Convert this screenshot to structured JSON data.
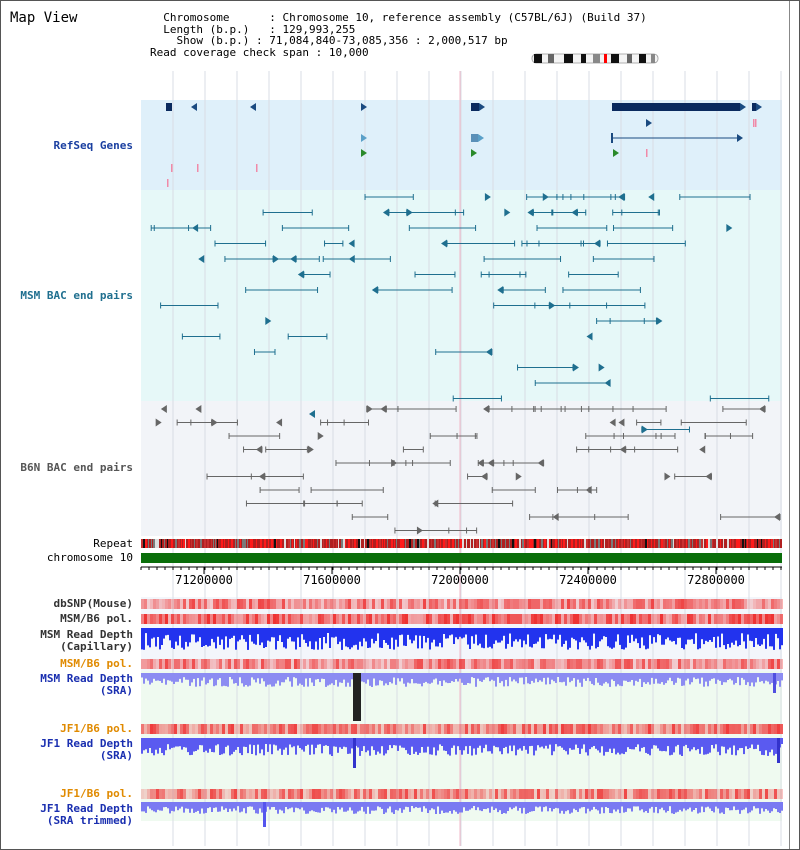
{
  "app": {
    "title": "Map View"
  },
  "info": {
    "chromosome_key": "Chromosome",
    "chromosome_value": "Chromosome 10, reference assembly (C57BL/6J) (Build 37)",
    "length_key": "Length (b.p.)",
    "length_value": "129,993,255",
    "show_key": "Show (b.p.)",
    "show_value": "71,084,840-73,085,356 : 2,000,517 bp",
    "coverage_key": "Read coverage check span",
    "coverage_value": "10,000"
  },
  "tracks": {
    "refseq": {
      "label": "RefSeq Genes",
      "color": "#1a3fa0"
    },
    "msm_bac": {
      "label": "MSM BAC end pairs",
      "color": "#1f6f8f"
    },
    "b6n_bac": {
      "label": "B6N BAC end pairs",
      "color": "#555555"
    },
    "repeat": {
      "label": "Repeat",
      "color": "#000000"
    },
    "chromosome": {
      "label": "chromosome 10",
      "color": "#000000"
    },
    "dbsnp": {
      "label": "dbSNP(Mouse)",
      "color": "#333333"
    },
    "msm_b6_pol": {
      "label": "MSM/B6 pol.",
      "color": "#333333"
    },
    "msm_read_depth_cap": {
      "label": "MSM Read Depth\n(Capillary)",
      "color": "#333333"
    },
    "msm_b6_pol_2": {
      "label": "MSM/B6 pol.",
      "color": "#e08a00"
    },
    "msm_read_depth_sra": {
      "label": "MSM Read Depth\n(SRA)",
      "color": "#1a2fb0"
    },
    "jf1_b6_pol": {
      "label": "JF1/B6 pol.",
      "color": "#e08a00"
    },
    "jf1_read_depth_sra": {
      "label": "JF1 Read Depth\n(SRA)",
      "color": "#1a2fb0"
    },
    "jf1_b6_pol_2": {
      "label": "JF1/B6 pol.",
      "color": "#e08a00"
    },
    "jf1_read_depth_trim": {
      "label": "JF1 Read Depth\n(SRA trimmed)",
      "color": "#1a2fb0"
    }
  },
  "axis": {
    "ticks": [
      "71200000",
      "71600000",
      "72000000",
      "72400000",
      "72800000"
    ]
  },
  "colors": {
    "refseq_bg": "#dff0fa",
    "msm_bg": "#e6f8f8",
    "b6n_bg": "#f2f4f8",
    "depth_bg": "#f3f6fb",
    "sra_bg": "#effaf0",
    "gene_dark": "#0a2a5e",
    "msm_line": "#1f6f8f",
    "b6n_line": "#555555",
    "chromosome_bar": "#0a6e0a",
    "depth_blue": "#2233ee",
    "depth_light": "#8c8cf2",
    "pol_red": "#ee3333"
  }
}
